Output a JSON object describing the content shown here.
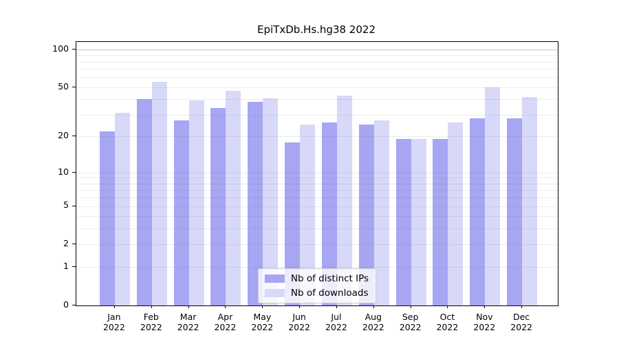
{
  "chart_data": {
    "type": "bar",
    "title": "EpiTxDb.Hs.hg38 2022",
    "categories": [
      "Jan",
      "Feb",
      "Mar",
      "Apr",
      "May",
      "Jun",
      "Jul",
      "Aug",
      "Sep",
      "Oct",
      "Nov",
      "Dec"
    ],
    "x_year_line": "2022",
    "series": [
      {
        "name": "Nb of distinct IPs",
        "color": "#a6a6f3",
        "values": [
          22,
          40,
          27,
          34,
          38,
          18,
          26,
          25,
          19,
          19,
          28,
          28
        ]
      },
      {
        "name": "Nb of downloads",
        "color": "#d8d8f8",
        "values": [
          31,
          55,
          39,
          47,
          41,
          25,
          43,
          27,
          19,
          26,
          50,
          42
        ]
      }
    ],
    "xlabel": "",
    "ylabel": "",
    "y_scale": "log1p",
    "ylim": [
      0,
      114.3
    ],
    "y_ticks": [
      0,
      1,
      2,
      5,
      10,
      20,
      50,
      100
    ],
    "y_minor_gridlines": [
      1,
      2,
      3,
      4,
      5,
      6,
      7,
      8,
      9,
      10,
      20,
      30,
      40,
      50,
      60,
      70,
      80,
      90,
      100
    ],
    "y_major_gridlines": [
      100
    ],
    "grid": "on",
    "legend_position": "lower center"
  }
}
